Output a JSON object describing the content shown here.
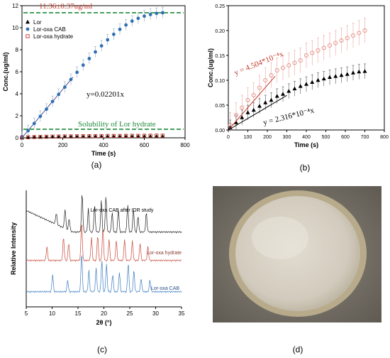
{
  "panels": {
    "a": {
      "label": "(a)"
    },
    "b": {
      "label": "(b)"
    },
    "c": {
      "label": "(c)"
    },
    "d": {
      "label": "(d)"
    }
  },
  "colors": {
    "red": "#c0392b",
    "blue": "#2f6fb3",
    "green": "#1f8a3a",
    "black": "#000000",
    "salmon": "#e58b80"
  },
  "chart_data": [
    {
      "panel": "a",
      "type": "scatter",
      "xlabel": "Time (s)",
      "ylabel": "Conc.(ug/ml)",
      "xlim": [
        0,
        800
      ],
      "ylim": [
        0,
        12
      ],
      "xticks": [
        0,
        200,
        400,
        600,
        800
      ],
      "yticks": [
        0,
        2,
        4,
        6,
        8,
        10,
        12
      ],
      "legend_position": "top-left",
      "series": [
        {
          "name": "Lor",
          "marker": "triangle",
          "x": [
            0,
            30,
            60,
            90,
            120,
            150,
            180,
            210,
            240,
            270,
            300,
            330,
            360,
            390,
            420,
            450,
            480,
            510,
            540,
            570,
            600,
            630,
            660,
            690
          ],
          "y": [
            0,
            0.03,
            0.05,
            0.06,
            0.07,
            0.08,
            0.08,
            0.09,
            0.09,
            0.1,
            0.1,
            0.1,
            0.11,
            0.11,
            0.11,
            0.11,
            0.11,
            0.12,
            0.12,
            0.12,
            0.12,
            0.12,
            0.12,
            0.12
          ]
        },
        {
          "name": "Lor-oxa CAB",
          "marker": "circle",
          "x": [
            0,
            30,
            60,
            90,
            120,
            150,
            180,
            210,
            240,
            270,
            300,
            330,
            360,
            390,
            420,
            450,
            480,
            510,
            540,
            570,
            600,
            630,
            660,
            690
          ],
          "y": [
            0.1,
            0.65,
            1.3,
            1.95,
            2.6,
            3.3,
            3.95,
            4.6,
            5.3,
            5.95,
            6.6,
            7.2,
            7.8,
            8.35,
            8.9,
            9.4,
            9.85,
            10.25,
            10.6,
            10.85,
            11.05,
            11.2,
            11.3,
            11.36
          ],
          "error": 0.5
        },
        {
          "name": "Lor-oxa hydrate",
          "marker": "open-square",
          "x": [
            0,
            30,
            60,
            90,
            120,
            150,
            180,
            210,
            240,
            270,
            300,
            330,
            360,
            390,
            420,
            450,
            480,
            510,
            540,
            570,
            600,
            630,
            660,
            690
          ],
          "y": [
            0.02,
            0.05,
            0.07,
            0.09,
            0.1,
            0.11,
            0.12,
            0.13,
            0.13,
            0.14,
            0.15,
            0.15,
            0.16,
            0.16,
            0.17,
            0.17,
            0.17,
            0.18,
            0.18,
            0.18,
            0.19,
            0.19,
            0.2,
            0.2
          ]
        }
      ],
      "reference_lines": [
        {
          "label": "11.36±0.37ug/ml",
          "y": 11.36,
          "style": "dashed",
          "color": "green"
        },
        {
          "label": "Solubility of Lor hydrate",
          "y": 0.78,
          "style": "dashed",
          "color": "green"
        }
      ],
      "fit_line": {
        "label": "y=0.02201x",
        "slope": 0.02201,
        "x_range": [
          0,
          250
        ]
      }
    },
    {
      "panel": "b",
      "type": "scatter",
      "xlabel": "Time (s)",
      "ylabel": "Conc.(ug/ml)",
      "xlim": [
        0,
        800
      ],
      "ylim": [
        0,
        0.25
      ],
      "xticks": [
        0,
        100,
        200,
        300,
        400,
        500,
        600,
        700,
        800
      ],
      "yticks": [
        0.0,
        0.05,
        0.1,
        0.15,
        0.2,
        0.25
      ],
      "series": [
        {
          "name": "Lor-oxa hydrate",
          "marker": "open-circle",
          "x": [
            10,
            40,
            70,
            100,
            130,
            160,
            190,
            220,
            250,
            280,
            310,
            340,
            370,
            400,
            430,
            460,
            490,
            520,
            550,
            580,
            610,
            640,
            670,
            700
          ],
          "y": [
            0.01,
            0.03,
            0.045,
            0.06,
            0.07,
            0.085,
            0.1,
            0.11,
            0.12,
            0.125,
            0.13,
            0.135,
            0.14,
            0.15,
            0.155,
            0.16,
            0.165,
            0.17,
            0.175,
            0.18,
            0.185,
            0.19,
            0.195,
            0.2
          ],
          "error": 0.025
        },
        {
          "name": "Lor",
          "marker": "triangle",
          "x": [
            10,
            40,
            70,
            100,
            130,
            160,
            190,
            220,
            250,
            280,
            310,
            340,
            370,
            400,
            430,
            460,
            490,
            520,
            550,
            580,
            610,
            640,
            670,
            700
          ],
          "y": [
            0.005,
            0.015,
            0.025,
            0.035,
            0.04,
            0.048,
            0.055,
            0.06,
            0.068,
            0.072,
            0.078,
            0.083,
            0.088,
            0.092,
            0.096,
            0.1,
            0.103,
            0.106,
            0.108,
            0.11,
            0.112,
            0.115,
            0.117,
            0.118
          ],
          "error": 0.015
        }
      ],
      "fit_lines": [
        {
          "label": "y = 4.504*10⁻⁴x",
          "slope": 0.0004504,
          "x_range": [
            0,
            240
          ],
          "color": "red"
        },
        {
          "label": "y = 2.316*10⁻⁴x",
          "slope": 0.0002316,
          "x_range": [
            0,
            300
          ],
          "color": "black"
        }
      ]
    },
    {
      "panel": "c",
      "type": "line",
      "xlabel": "2θ (°)",
      "ylabel": "Relative Intensity",
      "xlim": [
        5,
        35
      ],
      "xticks": [
        5,
        10,
        15,
        20,
        25,
        30,
        35
      ],
      "series": [
        {
          "name": "Lor-oxa CAB after IDR study",
          "color": "black",
          "offset": 2,
          "peaks": [
            [
              10.8,
              0.3
            ],
            [
              12.5,
              0.5
            ],
            [
              13.3,
              0.3
            ],
            [
              15.8,
              1.0
            ],
            [
              17.0,
              0.6
            ],
            [
              18.2,
              0.7
            ],
            [
              19.5,
              0.8
            ],
            [
              20.4,
              0.9
            ],
            [
              21.6,
              0.5
            ],
            [
              22.8,
              0.6
            ],
            [
              24.6,
              0.7
            ],
            [
              25.7,
              0.6
            ],
            [
              26.6,
              0.4
            ],
            [
              28.2,
              0.5
            ]
          ]
        },
        {
          "name": "Lor-oxa hydrate",
          "color": "red",
          "offset": 1,
          "peaks": [
            [
              9.0,
              0.35
            ],
            [
              12.2,
              0.6
            ],
            [
              13.2,
              0.45
            ],
            [
              15.7,
              1.0
            ],
            [
              17.6,
              0.6
            ],
            [
              18.8,
              0.65
            ],
            [
              19.8,
              0.85
            ],
            [
              21.0,
              0.55
            ],
            [
              22.4,
              0.5
            ],
            [
              24.0,
              0.55
            ],
            [
              25.5,
              0.5
            ],
            [
              27.0,
              0.45
            ],
            [
              28.5,
              0.35
            ]
          ]
        },
        {
          "name": "Lor-oxa CAB",
          "color": "blue",
          "offset": 0,
          "peaks": [
            [
              10.1,
              0.45
            ],
            [
              13.0,
              0.3
            ],
            [
              15.7,
              1.0
            ],
            [
              17.1,
              0.55
            ],
            [
              18.5,
              0.6
            ],
            [
              19.6,
              0.8
            ],
            [
              20.5,
              0.7
            ],
            [
              21.7,
              0.45
            ],
            [
              23.0,
              0.5
            ],
            [
              24.7,
              0.75
            ],
            [
              25.8,
              0.55
            ],
            [
              27.2,
              0.35
            ],
            [
              28.9,
              0.3
            ]
          ]
        }
      ]
    }
  ]
}
